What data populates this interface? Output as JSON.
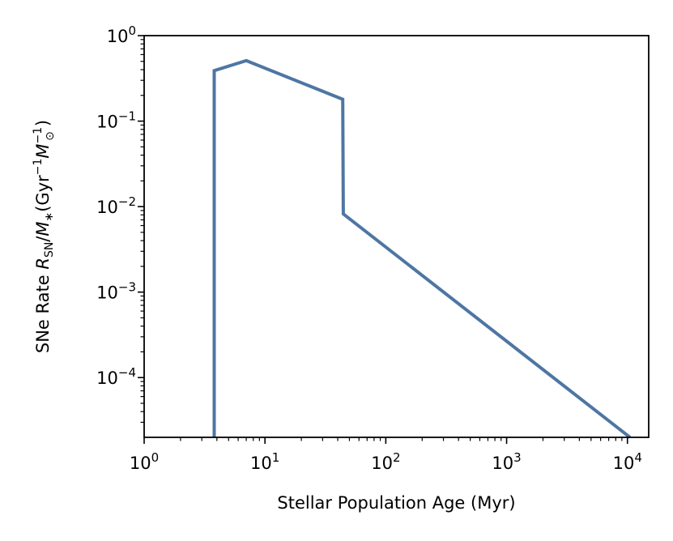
{
  "chart_data": {
    "type": "line",
    "xlabel": "Stellar Population Age (Myr)",
    "ylabel": {
      "prefix": "SNe Rate ",
      "sym1": "R",
      "sub1": "SN",
      "mid": "/",
      "sym2": "M",
      "sub2": "∗",
      "paren_open": "(Gyr",
      "exp1": "−1",
      "sym3": "M",
      "exp2": "−1",
      "sub3": "⊙",
      "paren_close": ")"
    },
    "x_scale": "log",
    "y_scale": "log",
    "xlim": [
      1,
      15000
    ],
    "ylim": [
      2e-05,
      1
    ],
    "x_ticks": [
      {
        "value": 1,
        "base": "10",
        "exp": "0"
      },
      {
        "value": 10,
        "base": "10",
        "exp": "1"
      },
      {
        "value": 100,
        "base": "10",
        "exp": "2"
      },
      {
        "value": 1000,
        "base": "10",
        "exp": "3"
      },
      {
        "value": 10000,
        "base": "10",
        "exp": "4"
      }
    ],
    "y_ticks": [
      {
        "value": 1,
        "base": "10",
        "exp": "0"
      },
      {
        "value": 0.1,
        "base": "10",
        "exp": "−1"
      },
      {
        "value": 0.01,
        "base": "10",
        "exp": "−2"
      },
      {
        "value": 0.001,
        "base": "10",
        "exp": "−3"
      },
      {
        "value": 0.0001,
        "base": "10",
        "exp": "−4"
      }
    ],
    "grid": false,
    "line_color": "#4e76a3",
    "series": [
      {
        "x": [
          3.8,
          3.8,
          7.0,
          44.0,
          44.5,
          10500
        ],
        "y": [
          2e-05,
          0.39,
          0.51,
          0.18,
          0.0082,
          2e-05
        ]
      }
    ]
  }
}
